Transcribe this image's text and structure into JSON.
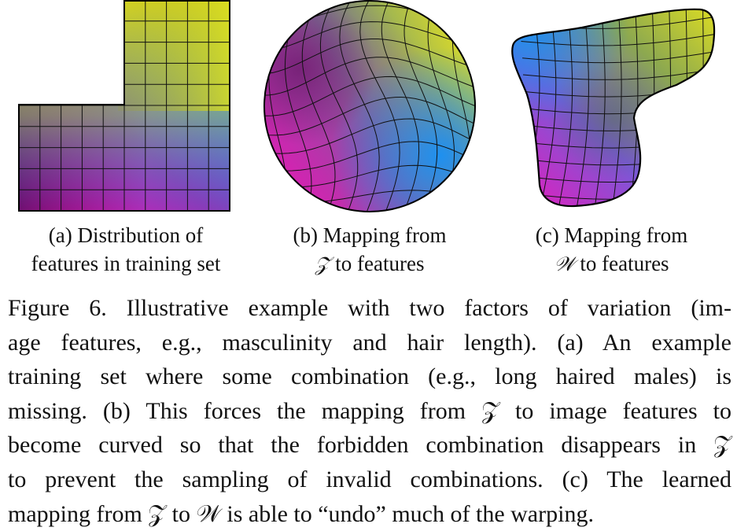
{
  "subcaptions": {
    "a": {
      "line1": "(a) Distribution of",
      "line2": "features in training set"
    },
    "b": {
      "line1": "(b) Mapping from",
      "line2_sym": "𝒵",
      "line2_rest": " to features"
    },
    "c": {
      "line1": "(c) Mapping from",
      "line2_sym": "𝒲",
      "line2_rest": " to features"
    }
  },
  "caption": {
    "l1": "Figure 6. Illustrative example with two factors of variation (im-",
    "l2": "age features, e.g., masculinity and hair length).  (a) An example",
    "l3": "training set where some combination (e.g., long haired males) is",
    "l4": "missing. (b) This forces the mapping from 𝒵 to image features to",
    "l5": "become curved so that the forbidden combination disappears in 𝒵",
    "l6": "to prevent the sampling of invalid combinations.  (c) The learned",
    "l7": "mapping from 𝒵 to 𝒲 is able to “undo” much of the warping."
  },
  "colors": {
    "magenta": "#f012b4",
    "purple": "#6e1070",
    "blue": "#1c8cf0",
    "yellow": "#dde01e",
    "olive": "#b2b21e",
    "outline": "#000000"
  }
}
